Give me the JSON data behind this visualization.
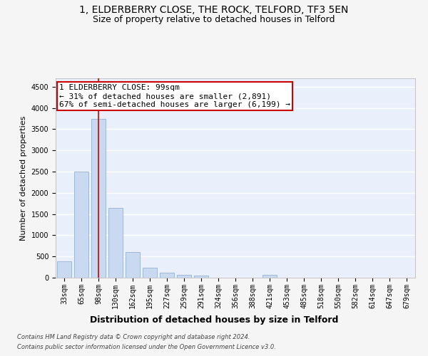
{
  "title_line1": "1, ELDERBERRY CLOSE, THE ROCK, TELFORD, TF3 5EN",
  "title_line2": "Size of property relative to detached houses in Telford",
  "xlabel": "Distribution of detached houses by size in Telford",
  "ylabel": "Number of detached properties",
  "categories": [
    "33sqm",
    "65sqm",
    "98sqm",
    "130sqm",
    "162sqm",
    "195sqm",
    "227sqm",
    "259sqm",
    "291sqm",
    "324sqm",
    "356sqm",
    "388sqm",
    "421sqm",
    "453sqm",
    "485sqm",
    "518sqm",
    "550sqm",
    "582sqm",
    "614sqm",
    "647sqm",
    "679sqm"
  ],
  "values": [
    380,
    2500,
    3750,
    1640,
    600,
    240,
    110,
    65,
    45,
    0,
    0,
    0,
    60,
    0,
    0,
    0,
    0,
    0,
    0,
    0,
    0
  ],
  "bar_color": "#c8d9f0",
  "bar_edgecolor": "#a0b8d8",
  "property_line_x": 2,
  "ylim": [
    0,
    4700
  ],
  "yticks": [
    0,
    500,
    1000,
    1500,
    2000,
    2500,
    3000,
    3500,
    4000,
    4500
  ],
  "annotation_title": "1 ELDERBERRY CLOSE: 99sqm",
  "annotation_line1": "← 31% of detached houses are smaller (2,891)",
  "annotation_line2": "67% of semi-detached houses are larger (6,199) →",
  "annotation_box_facecolor": "#ffffff",
  "annotation_box_edgecolor": "#cc0000",
  "footer_line1": "Contains HM Land Registry data © Crown copyright and database right 2024.",
  "footer_line2": "Contains public sector information licensed under the Open Government Licence v3.0.",
  "plot_bg_color": "#eaf0fb",
  "fig_bg_color": "#f5f5f5",
  "grid_color": "#ffffff",
  "property_line_color": "#cc0000",
  "title_fontsize": 10,
  "subtitle_fontsize": 9,
  "xlabel_fontsize": 9,
  "ylabel_fontsize": 8,
  "tick_fontsize": 7,
  "footer_fontsize": 6,
  "annotation_fontsize": 8
}
